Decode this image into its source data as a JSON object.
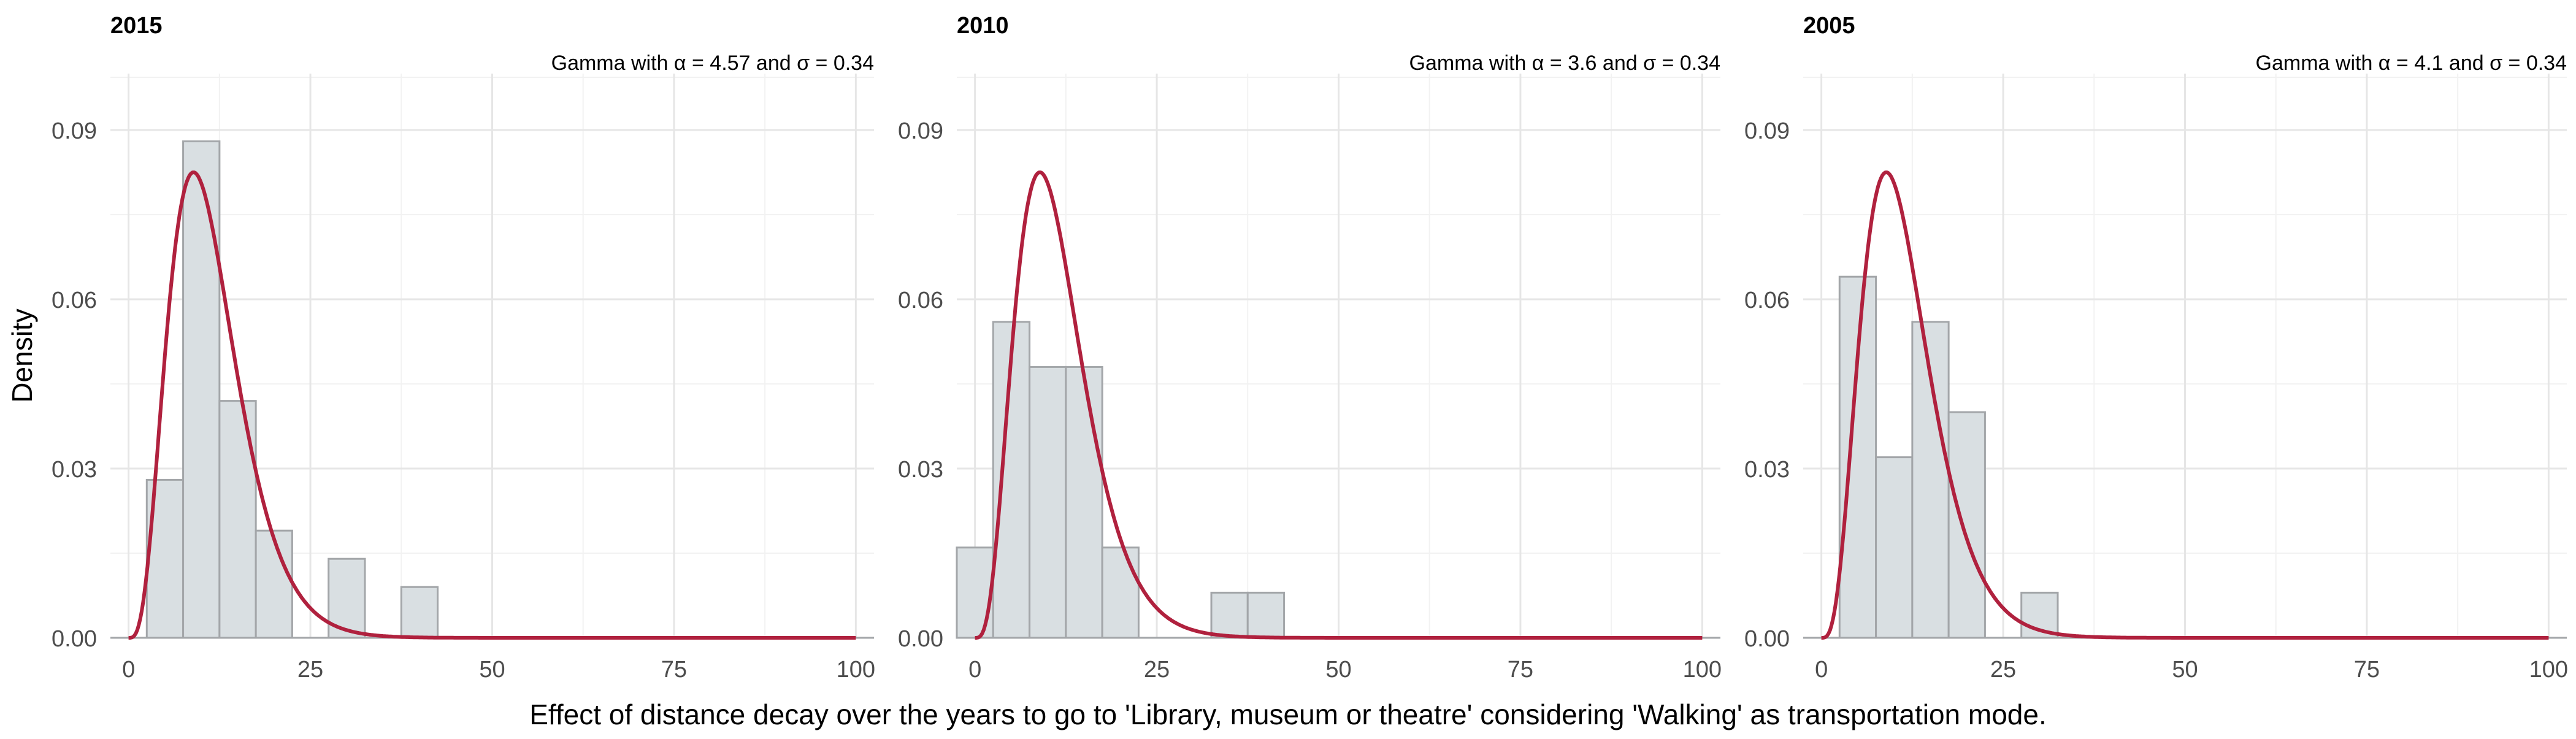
{
  "figure": {
    "ylabel": "Density",
    "caption": "Effect of distance decay over the years to go to 'Library, museum or theatre' considering 'Walking' as transportation mode.",
    "colors": {
      "bar_fill": "#d9dfe2",
      "bar_stroke": "#a3a6a9",
      "curve": "#b0213e",
      "grid_major": "#e6e6e6",
      "grid_minor": "#f2f2f2",
      "tick_text": "#4d4d4d"
    }
  },
  "chart_data": [
    {
      "type": "bar",
      "title": "2015",
      "annotation": "Gamma with α = 4.57 and σ = 0.34",
      "xlim": [
        -2.5,
        102.5
      ],
      "ylim": [
        0,
        0.1
      ],
      "x_ticks": [
        0,
        25,
        50,
        75,
        100
      ],
      "x_tick_labels": [
        "0",
        "25",
        "50",
        "75",
        "100"
      ],
      "y_ticks": [
        0.0,
        0.03,
        0.06,
        0.09
      ],
      "y_tick_labels": [
        "0.00",
        "0.03",
        "0.06",
        "0.09"
      ],
      "bin_width": 5,
      "bins": [
        {
          "x0": 2.5,
          "x1": 7.5,
          "density": 0.028
        },
        {
          "x0": 7.5,
          "x1": 12.5,
          "density": 0.088
        },
        {
          "x0": 12.5,
          "x1": 17.5,
          "density": 0.042
        },
        {
          "x0": 17.5,
          "x1": 22.5,
          "density": 0.019
        },
        {
          "x0": 27.5,
          "x1": 32.5,
          "density": 0.014
        },
        {
          "x0": 37.5,
          "x1": 42.5,
          "density": 0.009
        }
      ],
      "fit": {
        "distribution": "gamma",
        "alpha": 4.57,
        "sigma": 0.34
      }
    },
    {
      "type": "bar",
      "title": "2010",
      "annotation": "Gamma with α = 3.6 and σ = 0.34",
      "xlim": [
        -2.5,
        102.5
      ],
      "ylim": [
        0,
        0.1
      ],
      "x_ticks": [
        0,
        25,
        50,
        75,
        100
      ],
      "x_tick_labels": [
        "0",
        "25",
        "50",
        "75",
        "100"
      ],
      "y_ticks": [
        0.0,
        0.03,
        0.06,
        0.09
      ],
      "y_tick_labels": [
        "0.00",
        "0.03",
        "0.06",
        "0.09"
      ],
      "bin_width": 5,
      "bins": [
        {
          "x0": -2.5,
          "x1": 2.5,
          "density": 0.016
        },
        {
          "x0": 2.5,
          "x1": 7.5,
          "density": 0.056
        },
        {
          "x0": 7.5,
          "x1": 12.5,
          "density": 0.048
        },
        {
          "x0": 12.5,
          "x1": 17.5,
          "density": 0.048
        },
        {
          "x0": 17.5,
          "x1": 22.5,
          "density": 0.016
        },
        {
          "x0": 32.5,
          "x1": 37.5,
          "density": 0.008
        },
        {
          "x0": 37.5,
          "x1": 42.5,
          "density": 0.008
        }
      ],
      "fit": {
        "distribution": "gamma",
        "alpha": 3.6,
        "sigma": 0.34
      }
    },
    {
      "type": "bar",
      "title": "2005",
      "annotation": "Gamma with α = 4.1 and σ = 0.34",
      "xlim": [
        -2.5,
        102.5
      ],
      "ylim": [
        0,
        0.1
      ],
      "x_ticks": [
        0,
        25,
        50,
        75,
        100
      ],
      "x_tick_labels": [
        "0",
        "25",
        "50",
        "75",
        "100"
      ],
      "y_ticks": [
        0.0,
        0.03,
        0.06,
        0.09
      ],
      "y_tick_labels": [
        "0.00",
        "0.03",
        "0.06",
        "0.09"
      ],
      "bin_width": 5,
      "bins": [
        {
          "x0": 2.5,
          "x1": 7.5,
          "density": 0.064
        },
        {
          "x0": 7.5,
          "x1": 12.5,
          "density": 0.032
        },
        {
          "x0": 12.5,
          "x1": 17.5,
          "density": 0.056
        },
        {
          "x0": 17.5,
          "x1": 22.5,
          "density": 0.04
        },
        {
          "x0": 27.5,
          "x1": 32.5,
          "density": 0.008
        }
      ],
      "fit": {
        "distribution": "gamma",
        "alpha": 4.1,
        "sigma": 0.34
      }
    }
  ]
}
